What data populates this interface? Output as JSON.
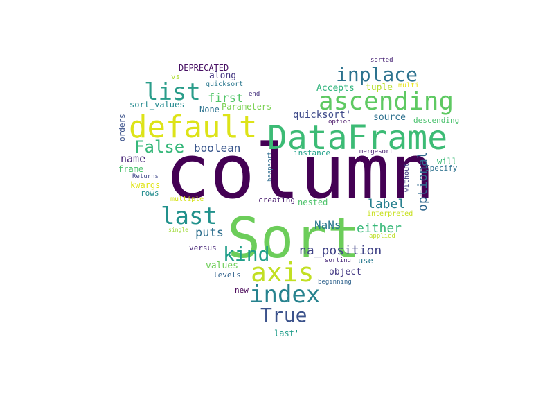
{
  "words": [
    {
      "text": "column",
      "color": "#440154"
    },
    {
      "text": "Sort",
      "color": "#6ccd5a"
    },
    {
      "text": "DataFrame",
      "color": "#3cbb75"
    },
    {
      "text": "default",
      "color": "#dde318"
    },
    {
      "text": "ascending",
      "color": "#5ec962"
    },
    {
      "text": "axis",
      "color": "#c2df23"
    },
    {
      "text": "index",
      "color": "#26828e"
    },
    {
      "text": "list",
      "color": "#2a9d8a"
    },
    {
      "text": "last",
      "color": "#21918c"
    },
    {
      "text": "inplace",
      "color": "#2c728e"
    },
    {
      "text": "True",
      "color": "#3b528b"
    },
    {
      "text": "kind",
      "color": "#1f9e89"
    },
    {
      "text": "False",
      "color": "#35b779"
    },
    {
      "text": "na_position",
      "color": "#414487"
    },
    {
      "text": "optional",
      "color": "#31688e"
    },
    {
      "text": "either",
      "color": "#37b878"
    },
    {
      "text": "boolean",
      "color": "#39568c"
    },
    {
      "text": "label",
      "color": "#277f8e"
    },
    {
      "text": "first",
      "color": "#52c569"
    },
    {
      "text": "puts",
      "color": "#2e6f8e"
    },
    {
      "text": "NaNs",
      "color": "#2a788e"
    },
    {
      "text": "name",
      "color": "#482576"
    },
    {
      "text": "quicksort'",
      "color": "#3e4a89"
    },
    {
      "text": "source",
      "color": "#2d708e"
    },
    {
      "text": "values",
      "color": "#6ece58"
    },
    {
      "text": "object",
      "color": "#443983"
    },
    {
      "text": "tuple",
      "color": "#b5de2b"
    },
    {
      "text": "Accepts",
      "color": "#2fb47c"
    },
    {
      "text": "along",
      "color": "#453781"
    },
    {
      "text": "DEPRECATED",
      "color": "#471063"
    },
    {
      "text": "sort_values",
      "color": "#23898e"
    },
    {
      "text": "None",
      "color": "#2c728e"
    },
    {
      "text": "Parameters",
      "color": "#7ad151"
    },
    {
      "text": "frame",
      "color": "#4ac16d"
    },
    {
      "text": "kwargs",
      "color": "#e0e418"
    },
    {
      "text": "rows",
      "color": "#228c8d"
    },
    {
      "text": "nested",
      "color": "#4ec36b"
    },
    {
      "text": "use",
      "color": "#29798e"
    },
    {
      "text": "will",
      "color": "#3aba76"
    },
    {
      "text": "Specify",
      "color": "#2d718e"
    },
    {
      "text": "descending",
      "color": "#4ac16d"
    },
    {
      "text": "versus",
      "color": "#482878"
    },
    {
      "text": "levels",
      "color": "#33638d"
    },
    {
      "text": "creating",
      "color": "#481b6d"
    },
    {
      "text": "last'",
      "color": "#1e9c89"
    },
    {
      "text": "new",
      "color": "#440154"
    },
    {
      "text": "orders",
      "color": "#3b528b"
    },
    {
      "text": "vs",
      "color": "#addc30"
    },
    {
      "text": "quicksort",
      "color": "#2a778e"
    },
    {
      "text": "end",
      "color": "#46327e"
    },
    {
      "text": "sorted",
      "color": "#482475"
    },
    {
      "text": "multi",
      "color": "#e7e419"
    },
    {
      "text": "option",
      "color": "#481467"
    },
    {
      "text": "instance",
      "color": "#1fa088"
    },
    {
      "text": "mergesort",
      "color": "#482071"
    },
    {
      "text": "heapsort",
      "color": "#2f6c8e"
    },
    {
      "text": "without",
      "color": "#424086"
    },
    {
      "text": "Returns",
      "color": "#3f4889"
    },
    {
      "text": "multiple",
      "color": "#d5e21a"
    },
    {
      "text": "interpreted",
      "color": "#c8e020"
    },
    {
      "text": "single",
      "color": "#a0da39"
    },
    {
      "text": "applied",
      "color": "#bddf26"
    },
    {
      "text": "sorting",
      "color": "#482979"
    },
    {
      "text": "beginning",
      "color": "#32648e"
    }
  ]
}
